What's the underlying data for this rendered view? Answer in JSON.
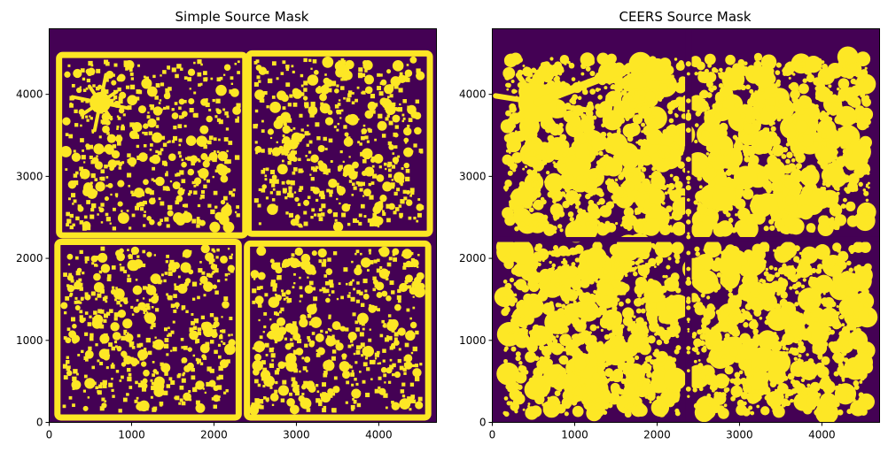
{
  "chart_data": [
    {
      "type": "heatmap",
      "title": "Simple Source Mask",
      "xlabel": "",
      "ylabel": "",
      "xlim": [
        0,
        4700
      ],
      "ylim": [
        0,
        4800
      ],
      "x_ticks": [
        0,
        1000,
        2000,
        3000,
        4000
      ],
      "y_ticks": [
        0,
        1000,
        2000,
        3000,
        4000
      ],
      "colormap": "viridis",
      "colors": {
        "background": "#440154",
        "source": "#fde725"
      },
      "mask_style": "simple"
    },
    {
      "type": "heatmap",
      "title": "CEERS Source Mask",
      "xlabel": "",
      "ylabel": "",
      "xlim": [
        0,
        4700
      ],
      "ylim": [
        0,
        4800
      ],
      "x_ticks": [
        0,
        1000,
        2000,
        3000,
        4000
      ],
      "y_ticks": [
        0,
        1000,
        2000,
        3000,
        4000
      ],
      "colormap": "viridis",
      "colors": {
        "background": "#440154",
        "source": "#fde725"
      },
      "mask_style": "ceers"
    }
  ]
}
